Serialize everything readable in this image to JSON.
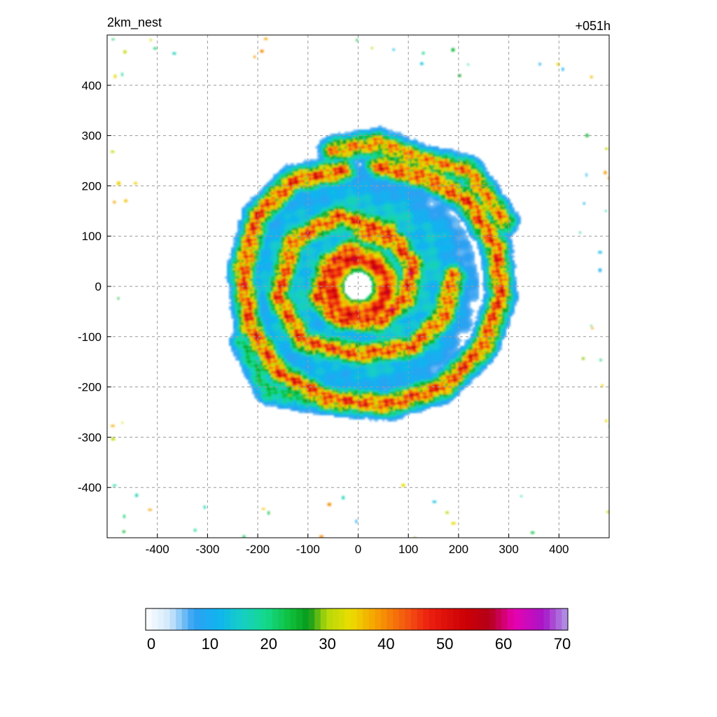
{
  "header": {
    "left_title": "2km_nest",
    "right_title": "+051h"
  },
  "chart_data": {
    "type": "heatmap",
    "title": "2km_nest",
    "subtitle": "+051h",
    "xlabel": "",
    "ylabel": "",
    "xlim": [
      -500,
      500
    ],
    "ylim": [
      -500,
      500
    ],
    "x_ticks": [
      -400,
      -300,
      -200,
      -100,
      0,
      100,
      200,
      300,
      400
    ],
    "y_ticks": [
      -400,
      -300,
      -200,
      -100,
      0,
      100,
      200,
      300,
      400
    ],
    "grid": true,
    "colorbar": {
      "min": 0,
      "max": 70,
      "tick_values": [
        0,
        10,
        20,
        30,
        40,
        50,
        60,
        70
      ],
      "tick_labels": [
        "0",
        "10",
        "20",
        "30",
        "40",
        "50",
        "60",
        "70"
      ],
      "stops": [
        {
          "value": 0,
          "color": "#ffffff"
        },
        {
          "value": 4,
          "color": "#cfe8fb"
        },
        {
          "value": 8,
          "color": "#2f9ff2"
        },
        {
          "value": 12,
          "color": "#10b4f0"
        },
        {
          "value": 16,
          "color": "#16cfc4"
        },
        {
          "value": 20,
          "color": "#14d98a"
        },
        {
          "value": 24,
          "color": "#0fbf3a"
        },
        {
          "value": 27,
          "color": "#089a1c"
        },
        {
          "value": 30,
          "color": "#b5d80a"
        },
        {
          "value": 34,
          "color": "#ecdc00"
        },
        {
          "value": 38,
          "color": "#f6a300"
        },
        {
          "value": 43,
          "color": "#f45a10"
        },
        {
          "value": 47,
          "color": "#ec1e10"
        },
        {
          "value": 53,
          "color": "#cc0005"
        },
        {
          "value": 57,
          "color": "#b40018"
        },
        {
          "value": 61,
          "color": "#e800b0"
        },
        {
          "value": 66,
          "color": "#a716c8"
        },
        {
          "value": 70,
          "color": "#b09ae6"
        }
      ]
    },
    "field": {
      "description_type": "spiral-rainband",
      "center": [
        0,
        0
      ],
      "eye_radius": 28,
      "eyewall_peak": 50,
      "band_peak": 45,
      "outer_ring_radius": 270,
      "outer_ring_peak": 45
    },
    "spiral_bands": [
      {
        "points": [
          [
            -10,
            75
          ],
          [
            -60,
            45
          ],
          [
            -80,
            -20
          ],
          [
            -40,
            -65
          ],
          [
            40,
            -70
          ],
          [
            95,
            -25
          ],
          [
            110,
            40
          ],
          [
            75,
            90
          ],
          [
            10,
            110
          ]
        ],
        "peak": 48
      },
      {
        "points": [
          [
            60,
            110
          ],
          [
            -40,
            140
          ],
          [
            -130,
            90
          ],
          [
            -160,
            -20
          ],
          [
            -110,
            -110
          ],
          [
            0,
            -135
          ],
          [
            110,
            -120
          ],
          [
            170,
            -60
          ],
          [
            190,
            20
          ]
        ],
        "peak": 46
      },
      {
        "points": [
          [
            -30,
            230
          ],
          [
            -130,
            210
          ],
          [
            -200,
            140
          ],
          [
            -230,
            30
          ],
          [
            -215,
            -80
          ],
          [
            -160,
            -170
          ],
          [
            -60,
            -225
          ],
          [
            60,
            -235
          ],
          [
            170,
            -200
          ],
          [
            250,
            -120
          ],
          [
            285,
            -20
          ],
          [
            275,
            80
          ],
          [
            220,
            170
          ],
          [
            140,
            215
          ],
          [
            40,
            240
          ]
        ],
        "peak": 47
      },
      {
        "points": [
          [
            -230,
            -110
          ],
          [
            -180,
            -210
          ],
          [
            -70,
            -230
          ]
        ],
        "peak": 24
      },
      {
        "points": [
          [
            -50,
            270
          ],
          [
            40,
            285
          ],
          [
            130,
            250
          ],
          [
            220,
            230
          ],
          [
            290,
            130
          ]
        ],
        "peak": 42
      }
    ]
  },
  "colors": {
    "grid": "#9a9a9a",
    "frame": "#000000",
    "background": "#ffffff"
  }
}
